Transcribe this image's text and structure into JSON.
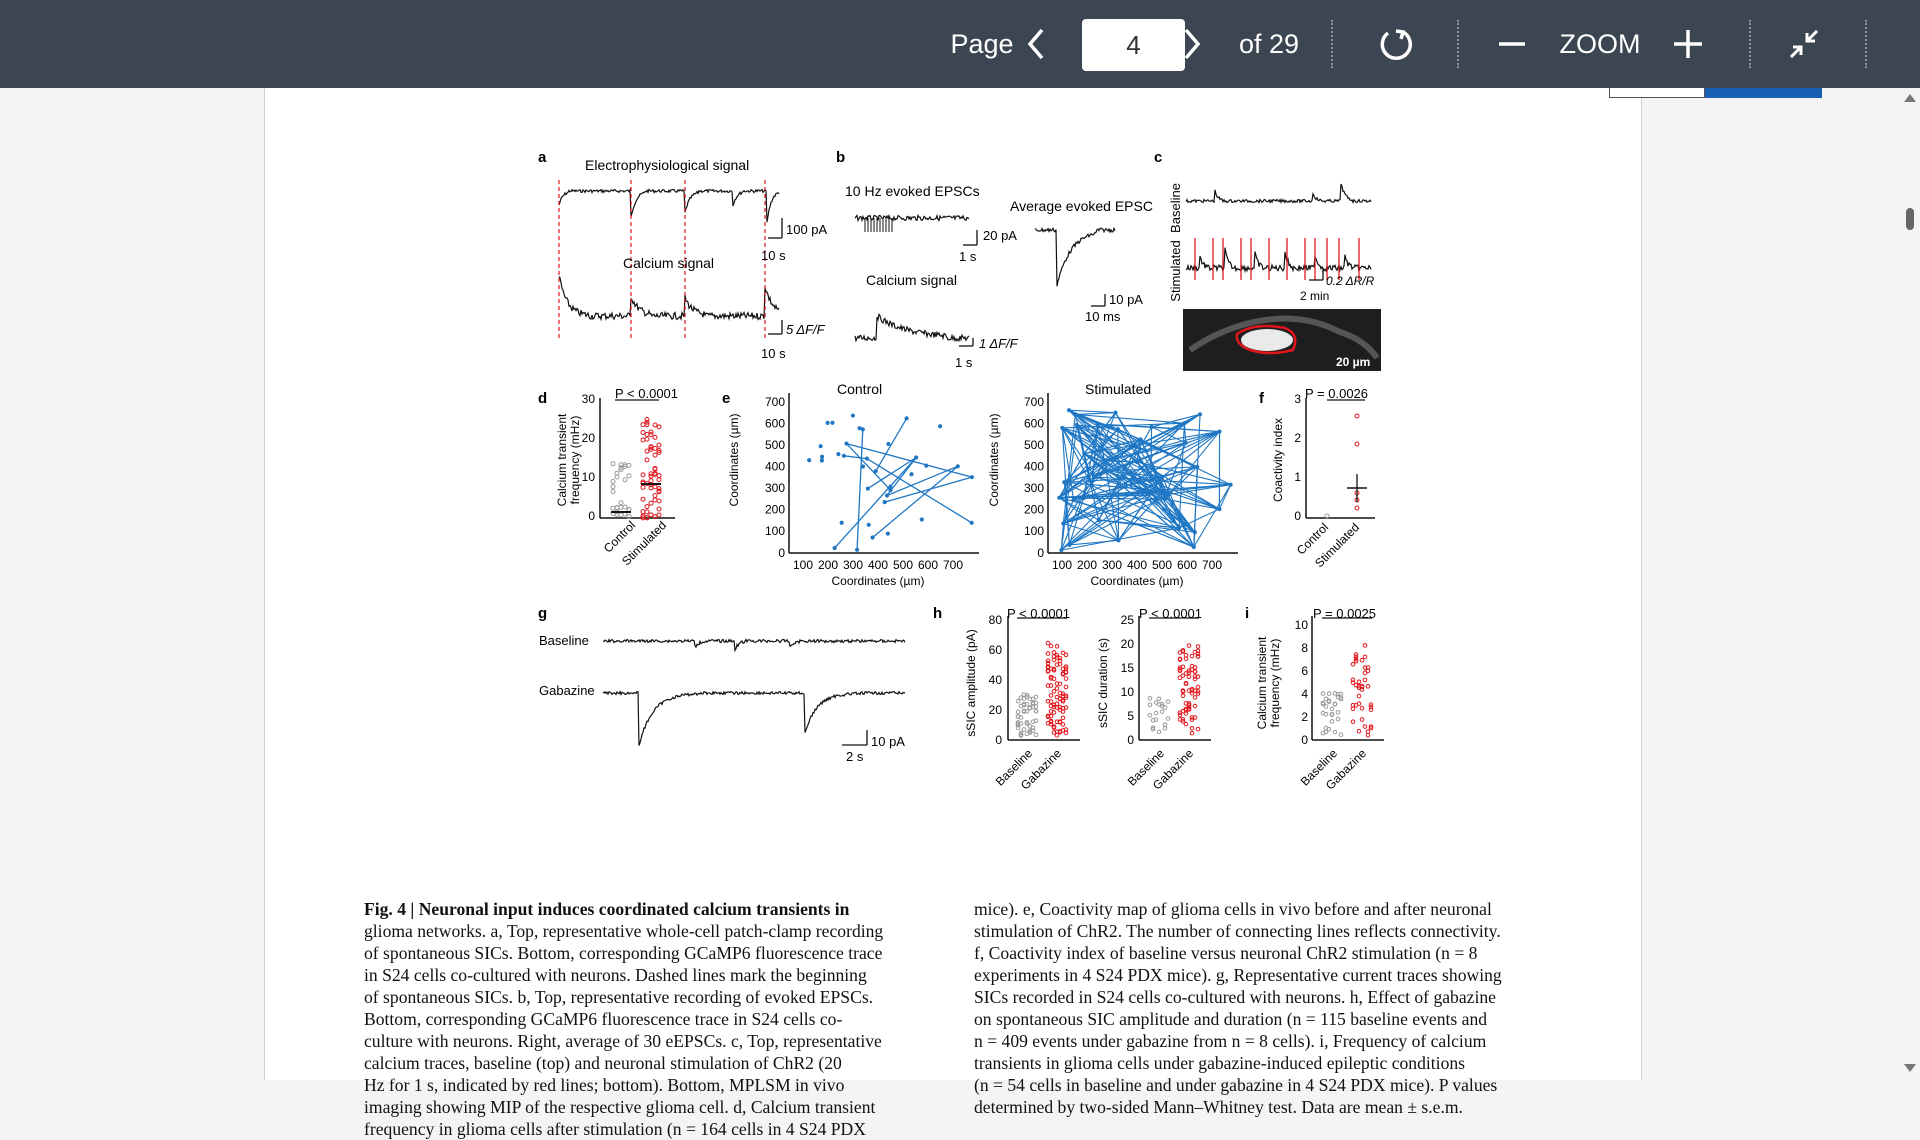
{
  "toolbar": {
    "page_label": "Page",
    "current_page": "4",
    "of_label": "of 29",
    "zoom_label": "ZOOM"
  },
  "figure": {
    "panels": {
      "a": {
        "letter": "a",
        "title": "Electrophysiological signal",
        "scale1": "100 pA",
        "time1": "10 s",
        "sub": "Calcium signal",
        "scale2": "5 ΔF/F",
        "time2": "10 s"
      },
      "b": {
        "letter": "b",
        "title": "10 Hz evoked EPSCs",
        "scale1": "20 pA",
        "time1": "1 s",
        "sub": "Calcium signal",
        "scale2": "1 ΔF/F",
        "time2": "1 s",
        "avg_title": "Average evoked EPSC",
        "avg_scale": "10 pA",
        "avg_time": "10 ms"
      },
      "c": {
        "letter": "c",
        "label_baseline": "Baseline",
        "label_stim": "Stimulated",
        "scale": "0.2 ΔR/R",
        "time": "2 min",
        "bar": "20 µm"
      },
      "d": {
        "letter": "d",
        "p": "P < 0.0001",
        "ylabel1": "Calcium transient",
        "ylabel2": "frequency (mHz)",
        "yticks": [
          "0",
          "10",
          "20",
          "30"
        ],
        "xcats": [
          "Control",
          "Stimulated"
        ]
      },
      "e": {
        "letter": "e",
        "title_control": "Control",
        "title_stim": "Stimulated",
        "ylabel": "Coordinates (µm)",
        "xlabel": "Coordinates (µm)",
        "ticks": [
          "100",
          "200",
          "300",
          "400",
          "500",
          "600",
          "700"
        ]
      },
      "f": {
        "letter": "f",
        "p": "P = 0.0026",
        "ylabel": "Coactivity index",
        "yticks": [
          "0",
          "1",
          "2",
          "3"
        ],
        "xcats": [
          "Control",
          "Stimulated"
        ]
      },
      "g": {
        "letter": "g",
        "baseline": "Baseline",
        "gabazine": "Gabazine",
        "scale": "10 pA",
        "time": "2 s"
      },
      "h": {
        "letter": "h",
        "p1": "P < 0.0001",
        "ylabel1": "sSIC amplitude (pA)",
        "yticks1": [
          "0",
          "20",
          "40",
          "60",
          "80"
        ],
        "p2": "P < 0.0001",
        "ylabel2": "sSIC duration (s)",
        "yticks2": [
          "0",
          "5",
          "10",
          "15",
          "20",
          "25"
        ],
        "xcats": [
          "Baseline",
          "Gabazine"
        ]
      },
      "i": {
        "letter": "i",
        "p": "P = 0.0025",
        "ylabel1": "Calcium transient",
        "ylabel2": "frequency (mHz)",
        "yticks": [
          "0",
          "2",
          "4",
          "6",
          "8",
          "10"
        ],
        "xcats": [
          "Baseline",
          "Gabazine"
        ]
      }
    }
  },
  "caption": {
    "left": [
      "Fig. 4 | Neuronal input induces coordinated calcium transients in",
      "glioma networks. a, Top, representative whole-cell patch-clamp recording",
      "of spontaneous SICs. Bottom, corresponding GCaMP6 fluorescence trace",
      "in S24 cells co-cultured with neurons. Dashed lines mark the beginning",
      "of spontaneous SICs. b, Top, representative recording of evoked EPSCs.",
      "Bottom, corresponding GCaMP6 fluorescence trace in S24 cells co-",
      "culture with neurons. Right, average of 30 eEPSCs. c, Top, representative",
      "calcium traces, baseline (top) and neuronal stimulation of ChR2 (20",
      "Hz for 1 s, indicated by red lines; bottom). Bottom, MPLSM in vivo",
      "imaging showing MIP of the respective glioma cell. d, Calcium transient",
      "frequency in glioma cells after stimulation (n = 164 cells in 4 S24 PDX"
    ],
    "right": [
      "mice). e, Coactivity map of glioma cells in vivo before and after neuronal",
      "stimulation of ChR2. The number of connecting lines reflects connectivity.",
      "f, Coactivity index of baseline versus neuronal ChR2 stimulation (n = 8",
      "experiments in 4 S24 PDX mice). g, Representative current traces showing",
      "SICs recorded in S24 cells co-cultured with neurons. h, Effect of gabazine",
      "on spontaneous SIC amplitude and duration (n = 115 baseline events and",
      "n = 409 events under gabazine from n = 8 cells). i, Frequency of calcium",
      "transients in glioma cells under gabazine-induced epileptic conditions",
      "(n = 54 cells in baseline and under gabazine in 4 S24 PDX mice). P values",
      "determined by two-sided Mann–Whitney test. Data are mean ± s.e.m."
    ]
  }
}
